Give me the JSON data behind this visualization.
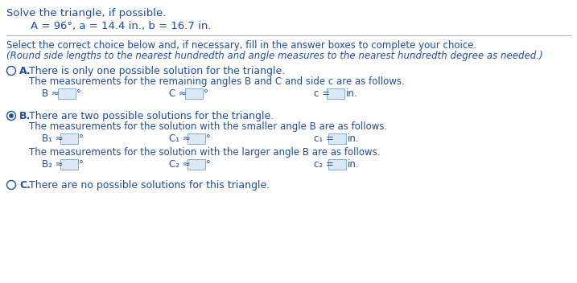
{
  "title": "Solve the triangle, if possible.",
  "given": "A = 96°, a = 14.4 in., b = 16.7 in.",
  "instr1": "Select the correct choice below and, if necessary, fill in the answer boxes to complete your choice.",
  "instr2": "(Round side lengths to the nearest hundredth and angle measures to the nearest hundredth degree as needed.)",
  "A_line1": "There is only one possible solution for the triangle.",
  "A_line2": "The measurements for the remaining angles B and C and side c are as follows.",
  "B_line1": "There are two possible solutions for the triangle.",
  "B_line2": "The measurements for the solution with the smaller angle B are as follows.",
  "B_line3": "The measurements for the solution with the larger angle B are as follows.",
  "C_line1": "There are no possible solutions for this triangle.",
  "text_color": "#1e4d9b",
  "box_edge_color": "#7bafd4",
  "box_face_color": "#dce9f5",
  "sep_color": "#aaaaaa",
  "bg_color": "#ffffff",
  "fs_title": 9.5,
  "fs_given": 9.5,
  "fs_instr": 8.5,
  "fs_option": 9.0,
  "fs_sub": 8.5
}
